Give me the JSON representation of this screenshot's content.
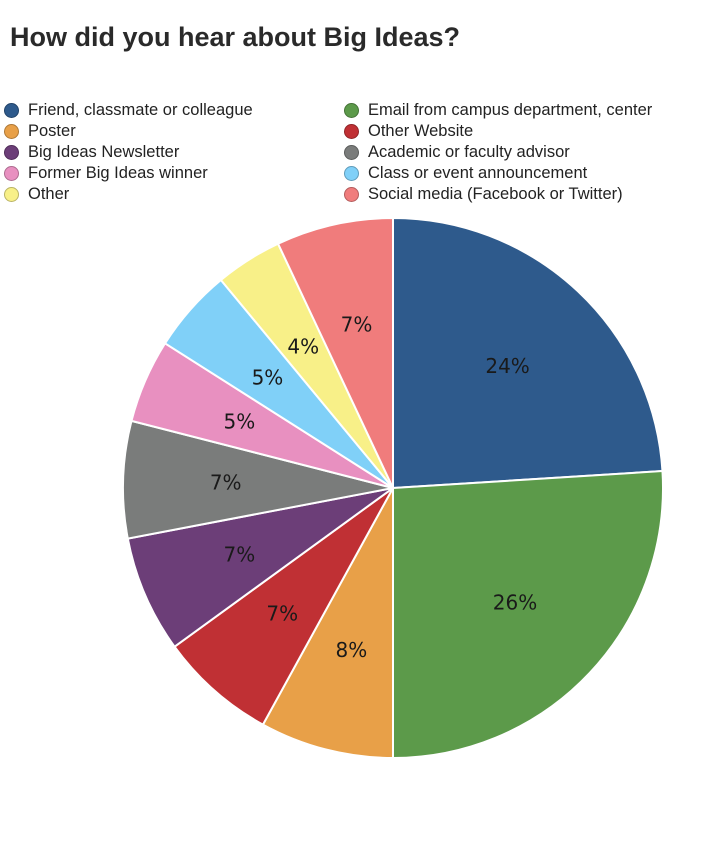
{
  "chart_data": {
    "type": "pie",
    "title": "How did you hear about Big Ideas?",
    "legend_position": "top",
    "slices": [
      {
        "label": "Friend, classmate or colleague",
        "value": 24,
        "value_label": "24%",
        "color": "#2E5A8C"
      },
      {
        "label": "Email from campus department, center",
        "value": 26,
        "value_label": "26%",
        "color": "#5C9A4A"
      },
      {
        "label": "Poster",
        "value": 8,
        "value_label": "8%",
        "color": "#E8A048"
      },
      {
        "label": "Other Website",
        "value": 7,
        "value_label": "7%",
        "color": "#C03034"
      },
      {
        "label": "Big Ideas Newsletter",
        "value": 7,
        "value_label": "7%",
        "color": "#6C3E78"
      },
      {
        "label": "Academic or faculty advisor",
        "value": 7,
        "value_label": "7%",
        "color": "#7A7C7B"
      },
      {
        "label": "Former Big Ideas winner",
        "value": 5,
        "value_label": "5%",
        "color": "#E890C0"
      },
      {
        "label": "Class or event announcement",
        "value": 5,
        "value_label": "5%",
        "color": "#80D0F8"
      },
      {
        "label": "Other",
        "value": 4,
        "value_label": "4%",
        "color": "#F8F088"
      },
      {
        "label": "Social media (Facebook or Twitter)",
        "value": 7,
        "value_label": "7%",
        "color": "#F07C7C"
      }
    ]
  }
}
